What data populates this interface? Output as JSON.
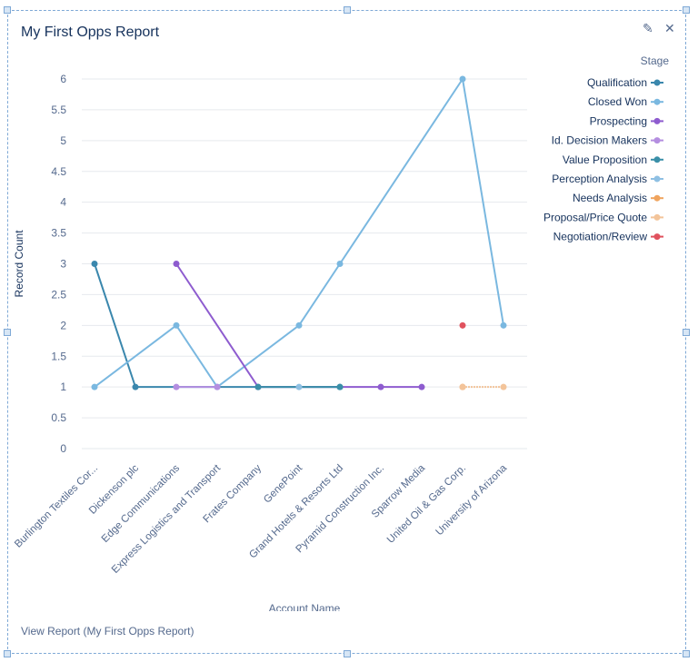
{
  "widget": {
    "title": "My First Opps Report",
    "edit_icon": "pencil-icon",
    "close_icon": "close-icon",
    "footer_link": "View Report (My First Opps Report)"
  },
  "chart_data": {
    "type": "line",
    "xlabel": "Account Name",
    "ylabel": "Record Count",
    "ylim": [
      0,
      6
    ],
    "yticks": [
      "0",
      "0.5",
      "1",
      "1.5",
      "2",
      "2.5",
      "3",
      "3.5",
      "4",
      "4.5",
      "5",
      "5.5",
      "6"
    ],
    "grid": true,
    "legend_title": "Stage",
    "legend_position": "right",
    "categories": [
      "Burlington Textiles Cor...",
      "Dickenson plc",
      "Edge Communications",
      "Express Logistics and Transport",
      "Frates Company",
      "GenePoint",
      "Grand Hotels & Resorts Ltd",
      "Pyramid Construction Inc.",
      "Sparrow Media",
      "United Oil & Gas Corp.",
      "University of Arizona"
    ],
    "series": [
      {
        "name": "Qualification",
        "color": "#3a87ad",
        "values": [
          3,
          1,
          null,
          null,
          null,
          null,
          1,
          null,
          null,
          null,
          null
        ]
      },
      {
        "name": "Closed Won",
        "color": "#7ab8e0",
        "values": [
          1,
          null,
          2,
          1,
          null,
          2,
          3,
          null,
          null,
          6,
          2
        ]
      },
      {
        "name": "Prospecting",
        "color": "#8e5ccf",
        "values": [
          null,
          null,
          3,
          null,
          1,
          null,
          null,
          1,
          1,
          null,
          null
        ]
      },
      {
        "name": "Id. Decision Makers",
        "color": "#b48ee0",
        "values": [
          null,
          null,
          1,
          1,
          null,
          null,
          null,
          null,
          null,
          null,
          null
        ]
      },
      {
        "name": "Value Proposition",
        "color": "#3a8fa8",
        "values": [
          null,
          null,
          null,
          null,
          1,
          null,
          1,
          null,
          null,
          null,
          null
        ]
      },
      {
        "name": "Perception Analysis",
        "color": "#8fc0e3",
        "values": [
          null,
          null,
          null,
          null,
          null,
          1,
          null,
          null,
          null,
          null,
          null
        ]
      },
      {
        "name": "Needs Analysis",
        "color": "#f0a45e",
        "values": [
          null,
          null,
          null,
          null,
          null,
          null,
          null,
          null,
          null,
          1,
          null
        ]
      },
      {
        "name": "Proposal/Price Quote",
        "color": "#f3c49a",
        "values": [
          null,
          null,
          null,
          null,
          null,
          null,
          null,
          null,
          null,
          1,
          1
        ]
      },
      {
        "name": "Negotiation/Review",
        "color": "#e0525e",
        "values": [
          null,
          null,
          null,
          null,
          null,
          null,
          null,
          null,
          null,
          2,
          null
        ]
      }
    ]
  }
}
